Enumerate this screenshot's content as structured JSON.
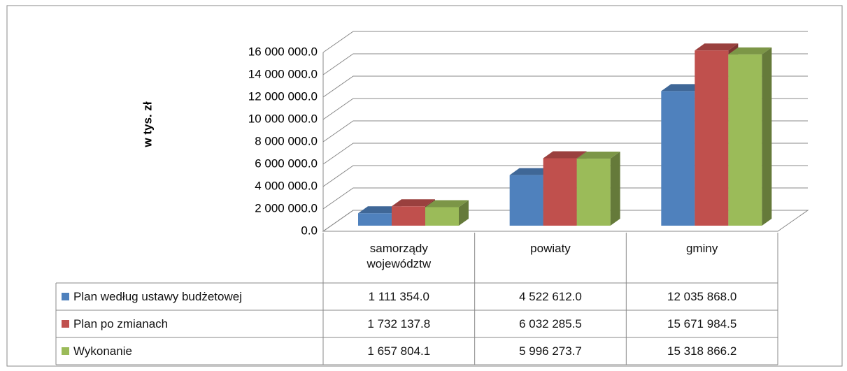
{
  "chart_data": {
    "type": "bar3d",
    "y_axis_label": "w tys. zł",
    "categories": [
      "samorządy województw",
      "powiaty",
      "gminy"
    ],
    "series": [
      {
        "name": "Plan według ustawy budżetowej",
        "color": "#4f81bd",
        "values": [
          1111354.0,
          4522612.0,
          12035868.0
        ],
        "value_labels": [
          "1 111 354.0",
          "4 522 612.0",
          "12 035 868.0"
        ]
      },
      {
        "name": "Plan po zmianach",
        "color": "#c0504d",
        "values": [
          1732137.8,
          6032285.5,
          15671984.5
        ],
        "value_labels": [
          "1 732 137.8",
          "6 032 285.5",
          "15 671 984.5"
        ]
      },
      {
        "name": "Wykonanie",
        "color": "#9bbb59",
        "values": [
          1657804.1,
          5996273.7,
          15318866.2
        ],
        "value_labels": [
          "1 657 804.1",
          "5 996 273.7",
          "15 318 866.2"
        ]
      }
    ],
    "ylim": [
      0,
      16000000
    ],
    "yticks": [
      {
        "value": 0,
        "label": "0.0"
      },
      {
        "value": 2000000,
        "label": "2 000 000.0"
      },
      {
        "value": 4000000,
        "label": "4 000 000.0"
      },
      {
        "value": 6000000,
        "label": "6 000 000.0"
      },
      {
        "value": 8000000,
        "label": "8 000 000.0"
      },
      {
        "value": 10000000,
        "label": "10 000 000.0"
      },
      {
        "value": 12000000,
        "label": "12 000 000.0"
      },
      {
        "value": 14000000,
        "label": "14 000 000.0"
      },
      {
        "value": 16000000,
        "label": "16 000 000.0"
      }
    ],
    "grid": true
  }
}
